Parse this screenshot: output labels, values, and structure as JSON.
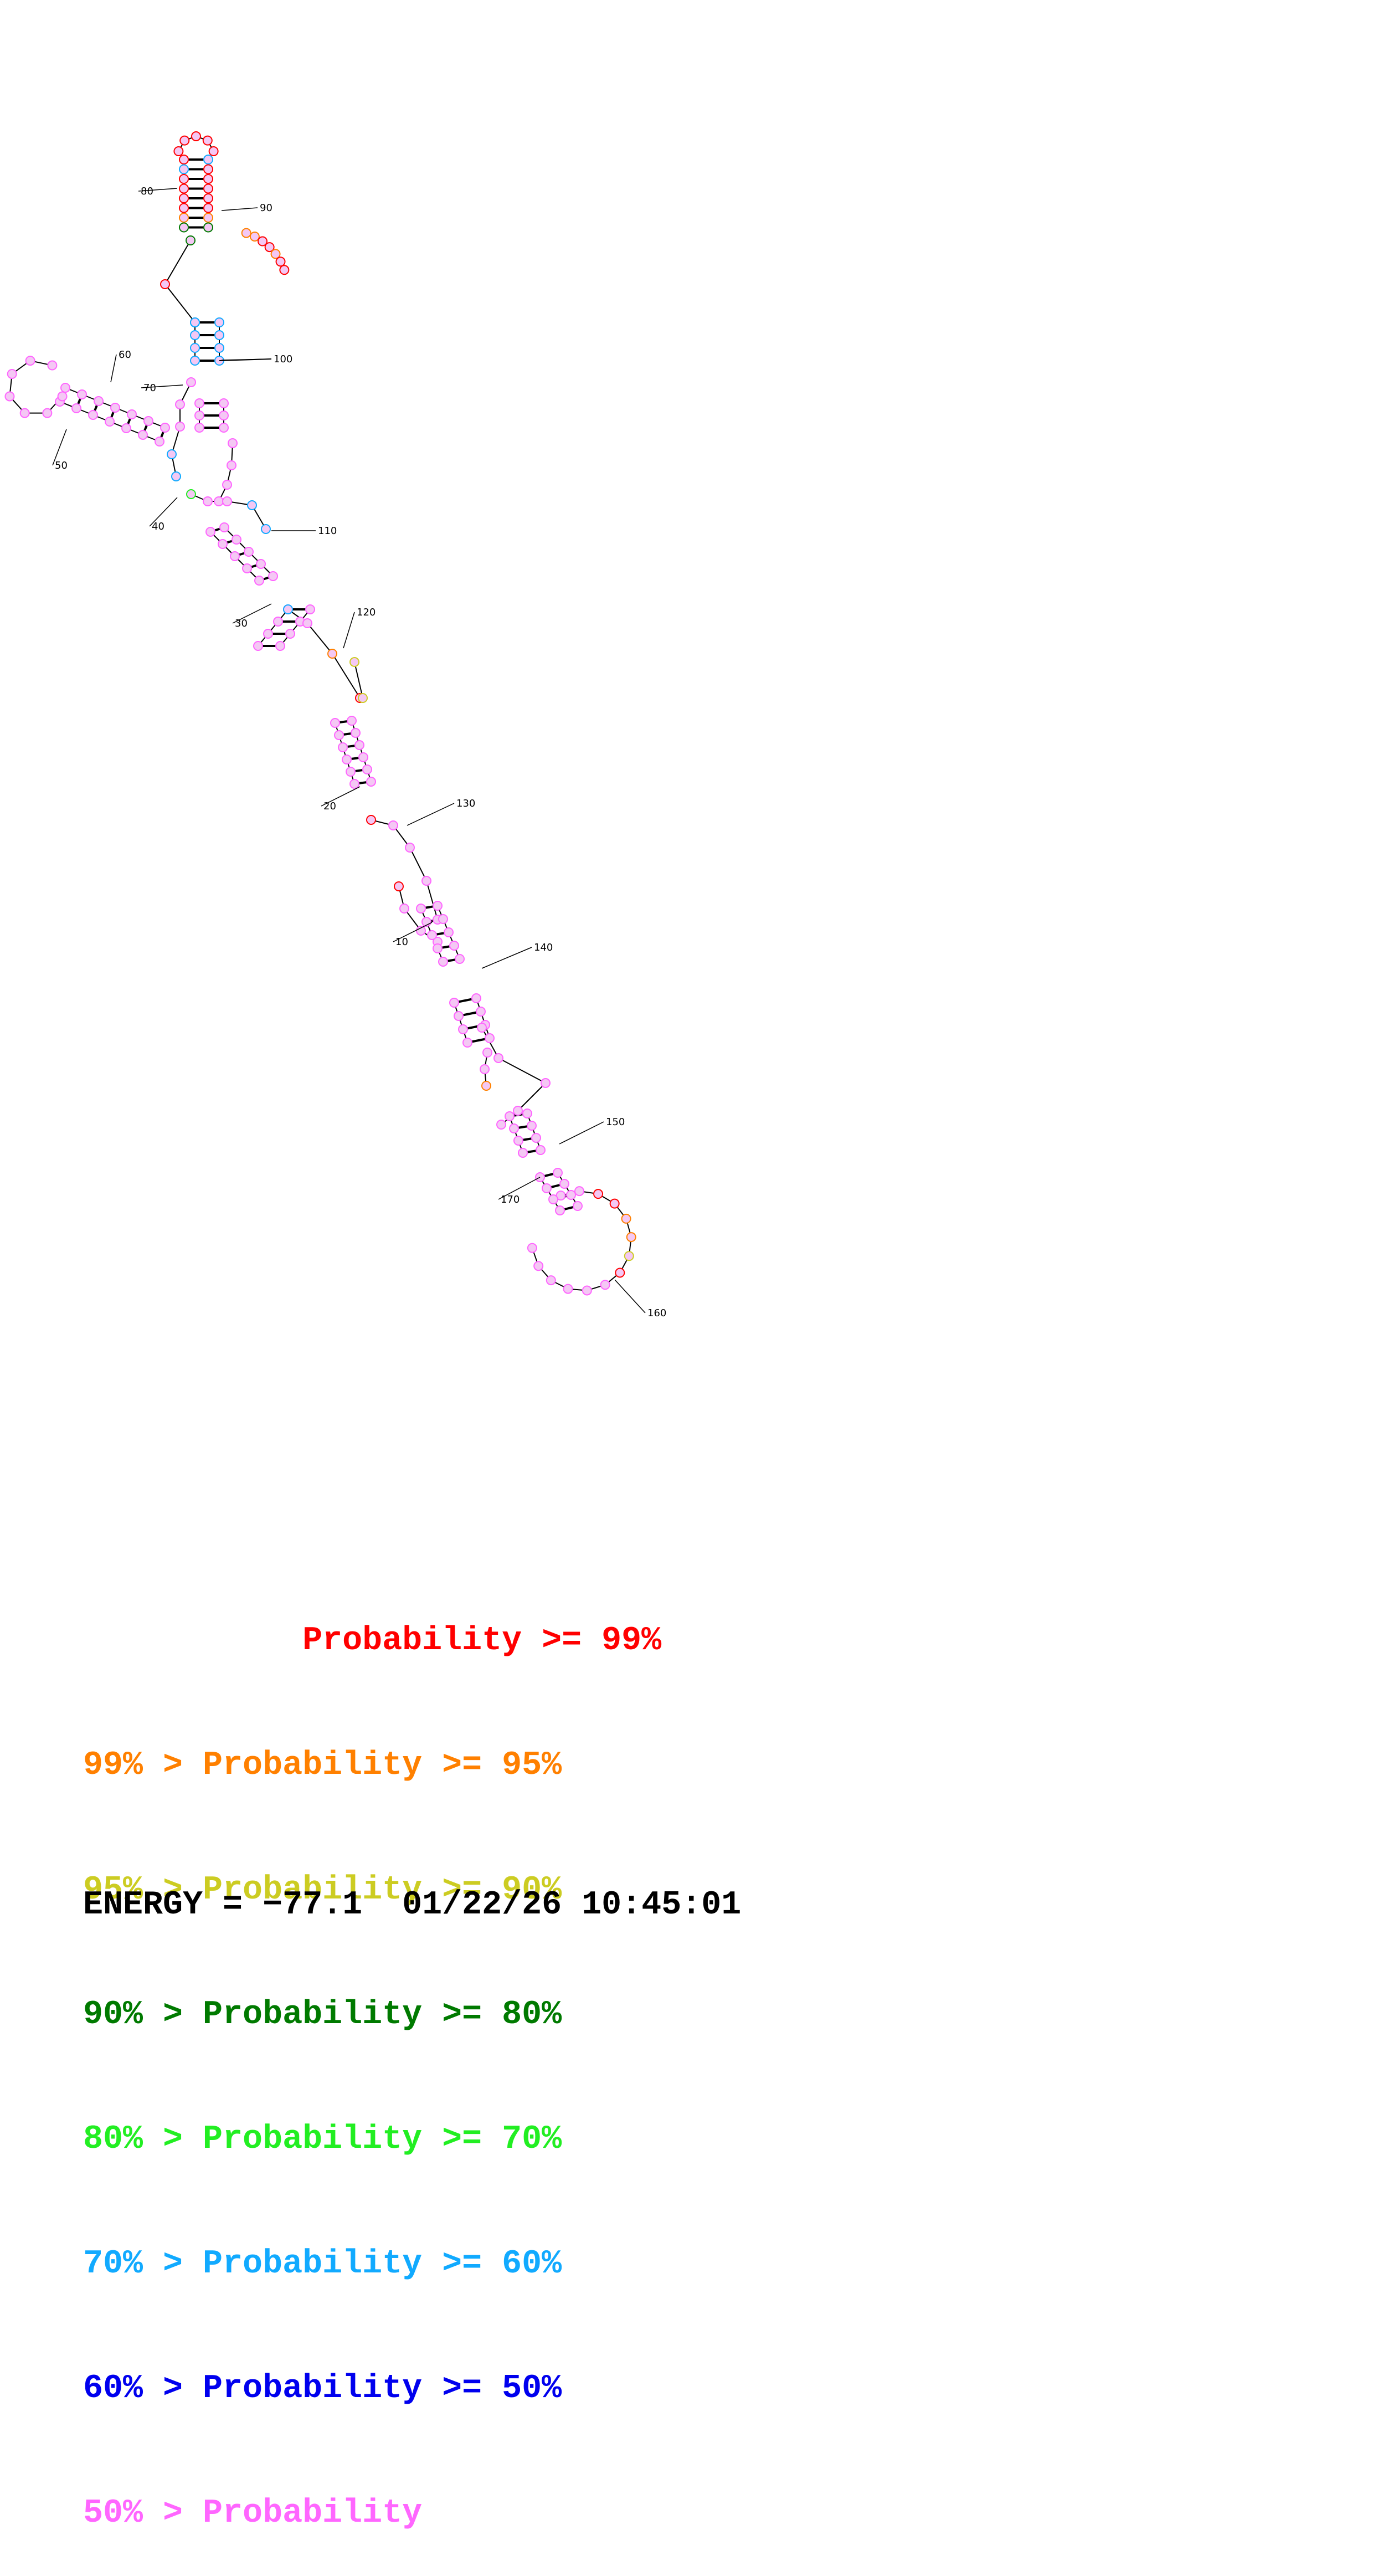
{
  "colors": {
    "p99": "#ff0000",
    "p95": "#ff8000",
    "p90": "#cccc22",
    "p80": "#007a00",
    "p70": "#22ee22",
    "p60": "#11aaff",
    "p50": "#0000ee",
    "plow": "#ff66ff",
    "node_fill": "#f4c8f4"
  },
  "position_labels": [
    "10",
    "20",
    "30",
    "40",
    "50",
    "60",
    "70",
    "80",
    "90",
    "100",
    "110",
    "120",
    "130",
    "140",
    "150",
    "160",
    "170"
  ],
  "legend": [
    {
      "prefix": "",
      "label": "Probability >= 99%",
      "color_key": "p99"
    },
    {
      "prefix": "99% > ",
      "label": "Probability >= 95%",
      "color_key": "p95"
    },
    {
      "prefix": "95% > ",
      "label": "Probability >= 90%",
      "color_key": "p90"
    },
    {
      "prefix": "90% > ",
      "label": "Probability >= 80%",
      "color_key": "p80"
    },
    {
      "prefix": "80% > ",
      "label": "Probability >= 70%",
      "color_key": "p70"
    },
    {
      "prefix": "70% > ",
      "label": "Probability >= 60%",
      "color_key": "p60"
    },
    {
      "prefix": "60% > ",
      "label": "Probability >= 50%",
      "color_key": "p50"
    },
    {
      "prefix": "50% > ",
      "label": "Probability",
      "color_key": "plow"
    }
  ],
  "energy": {
    "label": "ENERGY = ",
    "value": "−77.1",
    "date": "01/22/26",
    "time": "10:45:01"
  }
}
